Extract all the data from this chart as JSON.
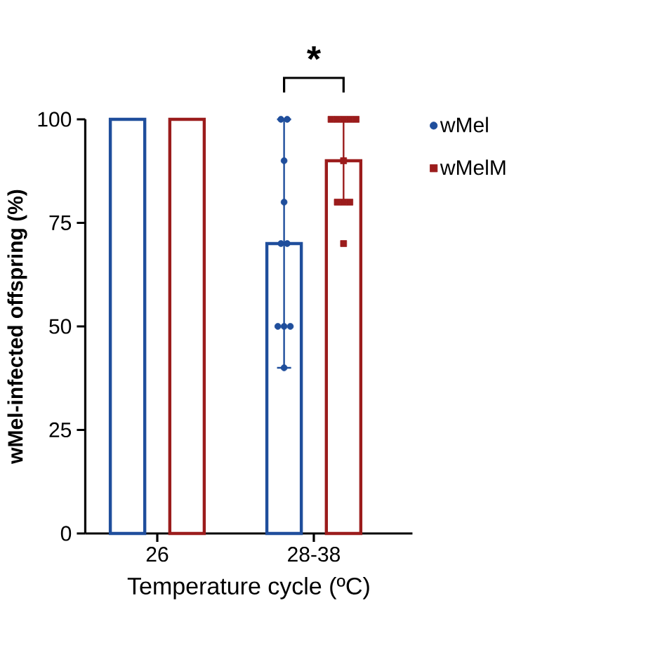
{
  "chart_data": {
    "type": "bar",
    "xlabel": "Temperature cycle (ºC)",
    "ylabel": "wMel-infected offspring (%)",
    "categories": [
      "26",
      "28-38"
    ],
    "series": [
      {
        "name": "wMel",
        "color": "#1f4e9c",
        "values": [
          100,
          70
        ],
        "errors": [
          null,
          [
            40,
            100
          ]
        ],
        "marker": "circle"
      },
      {
        "name": "wMelM",
        "color": "#9b1c1c",
        "values": [
          100,
          90
        ],
        "errors": [
          null,
          [
            80,
            100
          ]
        ],
        "marker": "square"
      },
      {
        "type": "scatter",
        "color": "#1f4e9c",
        "marker": "circle",
        "x": [
          "28-38",
          "28-38",
          "28-38",
          "28-38",
          "28-38",
          "28-38",
          "28-38",
          "28-38",
          "28-38",
          "28-38"
        ],
        "values": [
          100,
          100,
          90,
          80,
          70,
          70,
          50,
          50,
          50,
          40
        ]
      },
      {
        "type": "scatter",
        "color": "#9b1c1c",
        "marker": "square",
        "x": [
          "28-38",
          "28-38",
          "28-38",
          "28-38",
          "28-38",
          "28-38",
          "28-38",
          "28-38",
          "28-38",
          "28-38"
        ],
        "values": [
          100,
          100,
          100,
          100,
          100,
          90,
          80,
          80,
          80,
          70
        ]
      }
    ],
    "ylim": [
      0,
      100
    ],
    "yticks": [
      0,
      25,
      50,
      75,
      100
    ],
    "grid": false,
    "legend": "top right",
    "annotations": [
      "*"
    ]
  }
}
